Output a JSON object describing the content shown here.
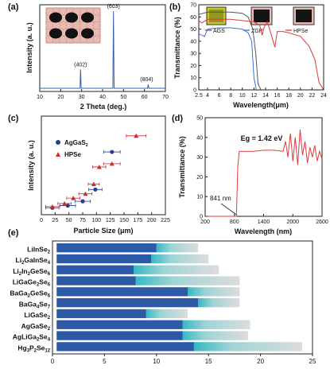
{
  "chart_data": [
    {
      "panel": "(a)",
      "type": "line",
      "xlabel": "2 Theta (deg.)",
      "ylabel": "Intensity (a. u.)",
      "xlim": [
        10,
        70
      ],
      "xticks": [
        10,
        20,
        30,
        40,
        50,
        60,
        70
      ],
      "peaks": [
        {
          "x": 29.5,
          "y": 0.26,
          "label": "(402)"
        },
        {
          "x": 45.2,
          "y": 1.0,
          "label": "(603)"
        },
        {
          "x": 61.8,
          "y": 0.07,
          "label": "(804)"
        }
      ],
      "color": "#3a5fb0"
    },
    {
      "panel": "(b)",
      "type": "line",
      "xlabel": "Wavelength(μm)",
      "ylabel": "Transmittance (%)",
      "xlim": [
        2.5,
        24
      ],
      "ylim": [
        0,
        70
      ],
      "xticks": [
        "2.5",
        "4",
        "6",
        "8",
        "10",
        "12",
        "14",
        "16",
        "18",
        "20",
        "22",
        "24"
      ],
      "yticks": [
        0,
        10,
        20,
        30,
        40,
        50,
        60,
        70
      ],
      "series": [
        {
          "name": "AGS",
          "color": "#555555",
          "x": [
            2.5,
            4,
            6,
            8,
            10,
            11,
            11.8,
            12.3,
            12.7,
            13.2
          ],
          "y": [
            62,
            64,
            64,
            64,
            63,
            60,
            50,
            30,
            5,
            0
          ]
        },
        {
          "name": "ZGP",
          "color": "#3a6fd8",
          "x": [
            2.5,
            3.5,
            4,
            6,
            8,
            10,
            11,
            11.6,
            12,
            12.4
          ],
          "y": [
            46,
            44,
            50,
            51,
            51,
            50,
            47,
            40,
            10,
            0
          ]
        },
        {
          "name": "HPSe",
          "color": "#e03a3a",
          "x": [
            2.5,
            3,
            4,
            6,
            8,
            10,
            12,
            13,
            13.4,
            13.8,
            14.3,
            15,
            15.6,
            16,
            17,
            18,
            20,
            21.5,
            22.5,
            23.2,
            24
          ],
          "y": [
            57,
            55,
            58,
            58,
            58,
            57,
            56,
            53,
            45,
            52,
            56,
            45,
            35,
            48,
            48,
            47,
            44,
            36,
            25,
            6,
            0
          ]
        }
      ]
    },
    {
      "panel": "(c)",
      "type": "scatter",
      "xlabel": "Particle Size (μm)",
      "ylabel": "Intensity (a. u.)",
      "xlim": [
        0,
        225
      ],
      "xticks": [
        0,
        25,
        50,
        75,
        100,
        125,
        150,
        175,
        200,
        225
      ],
      "series": [
        {
          "name": "AgGaS2",
          "color": "#2b3d8f",
          "marker": "circle",
          "x": [
            20,
            48,
            75,
            98,
            128
          ],
          "y": [
            0.05,
            0.07,
            0.11,
            0.22,
            0.57
          ],
          "xerr": [
            12,
            14,
            14,
            12,
            15
          ]
        },
        {
          "name": "HPSe",
          "color": "#d22a2a",
          "marker": "triangle",
          "x": [
            20,
            42,
            58,
            80,
            95,
            105,
            128,
            172
          ],
          "y": [
            0.06,
            0.09,
            0.14,
            0.18,
            0.27,
            0.43,
            0.46,
            0.72
          ],
          "xerr": [
            12,
            12,
            12,
            12,
            10,
            12,
            15,
            18
          ]
        }
      ]
    },
    {
      "panel": "(d)",
      "type": "line",
      "xlabel": "Wavelength (nm)",
      "ylabel": "Transmittance (%)",
      "xlim": [
        200,
        2600
      ],
      "ylim": [
        0,
        50
      ],
      "xticks": [
        200,
        800,
        1400,
        2000,
        2600
      ],
      "yticks": [
        0,
        10,
        20,
        30,
        40,
        50
      ],
      "annotations": [
        "Eg = 1.42 eV",
        "841 nm"
      ],
      "series": [
        {
          "name": "HPSe",
          "color": "#e03a3a",
          "x": [
            200,
            800,
            841,
            870,
            900,
            1000,
            1200,
            1400,
            1600,
            1800,
            1850,
            1900,
            1950,
            2000,
            2050,
            2100,
            2150,
            2200,
            2250,
            2300,
            2350,
            2400,
            2450,
            2500,
            2550,
            2600
          ],
          "y": [
            0,
            0,
            0,
            25,
            33,
            33,
            33,
            33.5,
            33.5,
            33,
            38,
            30,
            42,
            28,
            40,
            26,
            44,
            31,
            38,
            27,
            35,
            30,
            36,
            28,
            33,
            29
          ]
        }
      ]
    },
    {
      "panel": "(e)",
      "type": "bar",
      "xlim": [
        0,
        25
      ],
      "xticks": [
        0,
        5,
        10,
        15,
        20,
        25
      ],
      "categories": [
        "LiInSe2",
        "Li2GaInSe4",
        "Li2In2GeSe6",
        "LiGaGe2Se6",
        "BaGa2GeSe6",
        "BaGa4Se7",
        "LiGaSe2",
        "AgGaSe2",
        "AgLiGa2Se4",
        "Hg3P2Se12"
      ],
      "highlight": "Hg3P2Se12",
      "series": [
        {
          "name": "start",
          "values": [
            0.4,
            0.4,
            0.4,
            0.4,
            0.4,
            0.4,
            0.4,
            0.4,
            0.4,
            0.4
          ]
        },
        {
          "name": "dark_end",
          "values": [
            10,
            9.5,
            7.8,
            8,
            13,
            14,
            9,
            12.5,
            12.5,
            13.6
          ]
        },
        {
          "name": "end",
          "values": [
            14,
            15,
            16,
            18,
            18,
            18,
            13,
            19,
            18.8,
            24
          ]
        }
      ],
      "colors": {
        "dark": "#2d5aa6",
        "mid": "#35b8c4",
        "light": "#dcdcdc",
        "highlight_label": "#e02020"
      }
    }
  ]
}
